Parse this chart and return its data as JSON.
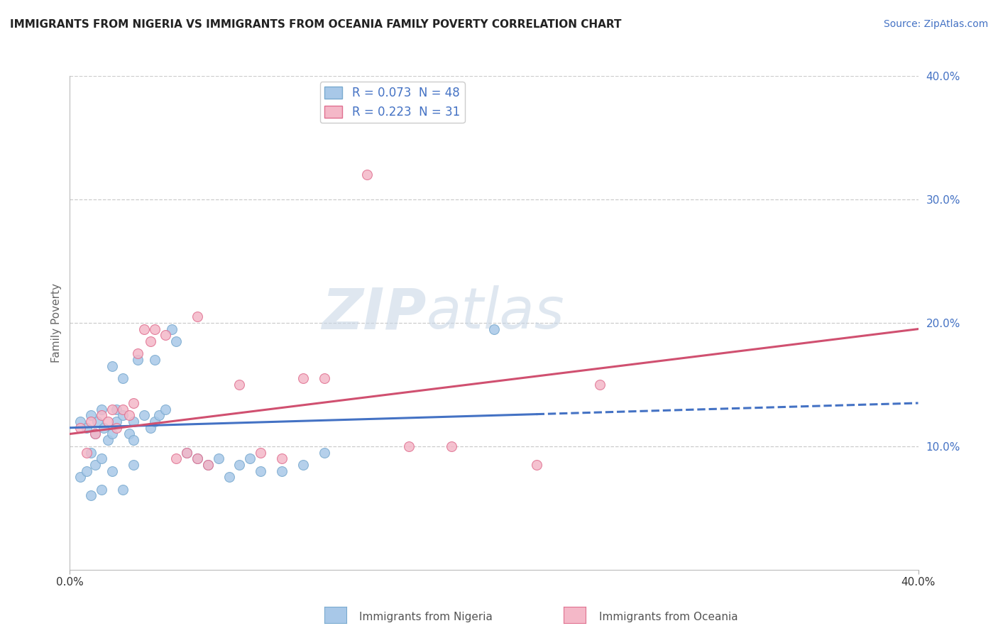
{
  "title": "IMMIGRANTS FROM NIGERIA VS IMMIGRANTS FROM OCEANIA FAMILY POVERTY CORRELATION CHART",
  "source_text": "Source: ZipAtlas.com",
  "ylabel": "Family Poverty",
  "xlim": [
    0.0,
    0.4
  ],
  "ylim": [
    0.0,
    0.4
  ],
  "y_ticks": [
    0.1,
    0.2,
    0.3,
    0.4
  ],
  "y_tick_labels": [
    "10.0%",
    "20.0%",
    "30.0%",
    "40.0%"
  ],
  "grid_color": "#cccccc",
  "background_color": "#ffffff",
  "watermark_zip": "ZIP",
  "watermark_atlas": "atlas",
  "nigeria_color": "#a8c8e8",
  "nigeria_edge": "#7aaacf",
  "oceania_color": "#f4b8c8",
  "oceania_edge": "#e07090",
  "nigeria_line_color": "#4472c4",
  "oceania_line_color": "#d05070",
  "nigeria_line_start_x": 0.0,
  "nigeria_line_end_solid_x": 0.22,
  "nigeria_line_end_x": 0.4,
  "nigeria_line_start_y": 0.115,
  "nigeria_line_end_y": 0.135,
  "oceania_line_start_x": 0.0,
  "oceania_line_end_x": 0.4,
  "oceania_line_start_y": 0.11,
  "oceania_line_end_y": 0.195,
  "legend_label_nigeria": "R = 0.073  N = 48",
  "legend_label_oceania": "R = 0.223  N = 31",
  "nigeria_scatter_x": [
    0.005,
    0.008,
    0.01,
    0.01,
    0.012,
    0.012,
    0.013,
    0.015,
    0.015,
    0.016,
    0.018,
    0.02,
    0.02,
    0.022,
    0.022,
    0.025,
    0.025,
    0.028,
    0.03,
    0.03,
    0.032,
    0.035,
    0.038,
    0.04,
    0.04,
    0.042,
    0.045,
    0.048,
    0.05,
    0.055,
    0.06,
    0.065,
    0.07,
    0.075,
    0.08,
    0.085,
    0.09,
    0.1,
    0.11,
    0.12,
    0.005,
    0.008,
    0.01,
    0.015,
    0.02,
    0.025,
    0.03,
    0.2
  ],
  "nigeria_scatter_y": [
    0.12,
    0.115,
    0.095,
    0.125,
    0.11,
    0.085,
    0.12,
    0.13,
    0.09,
    0.115,
    0.105,
    0.165,
    0.11,
    0.12,
    0.13,
    0.125,
    0.155,
    0.11,
    0.12,
    0.105,
    0.17,
    0.125,
    0.115,
    0.17,
    0.12,
    0.125,
    0.13,
    0.195,
    0.185,
    0.095,
    0.09,
    0.085,
    0.09,
    0.075,
    0.085,
    0.09,
    0.08,
    0.08,
    0.085,
    0.095,
    0.075,
    0.08,
    0.06,
    0.065,
    0.08,
    0.065,
    0.085,
    0.195
  ],
  "oceania_scatter_x": [
    0.005,
    0.008,
    0.01,
    0.012,
    0.015,
    0.018,
    0.02,
    0.022,
    0.025,
    0.028,
    0.03,
    0.032,
    0.035,
    0.038,
    0.04,
    0.045,
    0.05,
    0.055,
    0.06,
    0.065,
    0.08,
    0.1,
    0.12,
    0.14,
    0.16,
    0.25,
    0.06,
    0.09,
    0.11,
    0.18,
    0.22
  ],
  "oceania_scatter_y": [
    0.115,
    0.095,
    0.12,
    0.11,
    0.125,
    0.12,
    0.13,
    0.115,
    0.13,
    0.125,
    0.135,
    0.175,
    0.195,
    0.185,
    0.195,
    0.19,
    0.09,
    0.095,
    0.09,
    0.085,
    0.15,
    0.09,
    0.155,
    0.32,
    0.1,
    0.15,
    0.205,
    0.095,
    0.155,
    0.1,
    0.085
  ]
}
